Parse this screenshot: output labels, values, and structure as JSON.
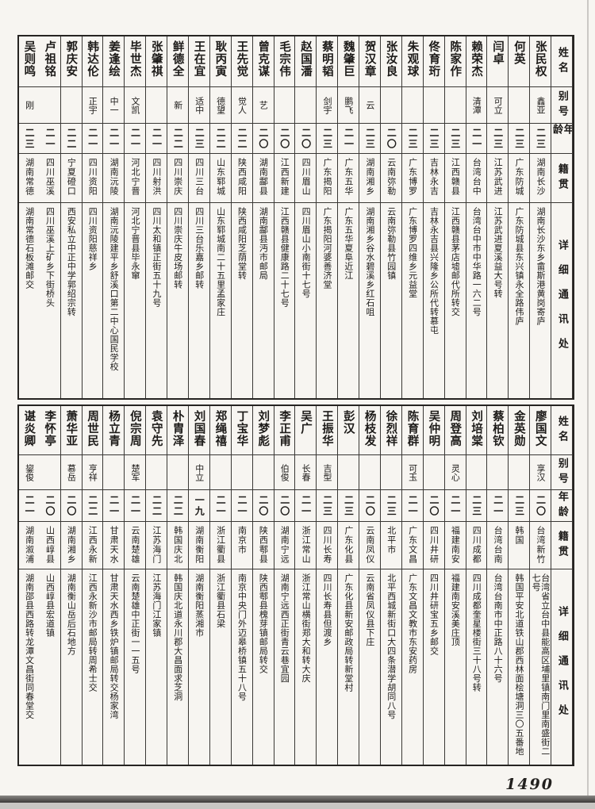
{
  "page": {
    "number": "1490"
  },
  "headers": {
    "name": "姓名",
    "alias": "别号",
    "age": "年龄",
    "native": "籍贯",
    "address": "详细通讯处"
  },
  "tables": [
    {
      "persons": [
        {
          "name": "张民权",
          "alias": "鑫亚",
          "age": "二三",
          "native": "湖南长沙",
          "address": "湖南长沙东乡畲斯港黄岗寄庐"
        },
        {
          "name": "何英",
          "alias": "",
          "age": "二三",
          "native": "广东防城",
          "address": "广东防城县东兴镇永全路伟庐"
        },
        {
          "name": "闫卓",
          "alias": "可立",
          "age": "二三",
          "native": "江苏武进",
          "address": "江苏武进夏溪益大号转"
        },
        {
          "name": "赖荣杰",
          "alias": "清潭",
          "age": "二一",
          "native": "台湾台中",
          "address": "台湾台中市中华路一六二号"
        },
        {
          "name": "陈家作",
          "alias": "",
          "age": "二三",
          "native": "江西赣县",
          "address": "江西赣县茅店墟邮代所转交"
        },
        {
          "name": "佟育珩",
          "alias": "",
          "age": "二三",
          "native": "吉林永吉",
          "address": "吉林永吉县兴隆乡公所代转慕屯"
        },
        {
          "name": "朱观球",
          "alias": "",
          "age": "二三",
          "native": "广东博罗",
          "address": "广东博罗四维乡元益堂"
        },
        {
          "name": "张汝良",
          "alias": "",
          "age": "二〇",
          "native": "云南弥勒",
          "address": "云南弥勒县竹园镇"
        },
        {
          "name": "贺汉章",
          "alias": "云",
          "age": "二三",
          "native": "湖南湘乡",
          "address": "湖南湘乡谷水碧溪乡红石咀"
        },
        {
          "name": "魏肇巨",
          "alias": "鹏飞",
          "age": "二一",
          "native": "广东五华",
          "address": "广东五华夏阜近江"
        },
        {
          "name": "蔡明韬",
          "alias": "剑宇",
          "age": "二三",
          "native": "广东揭阳",
          "address": "广东揭阳河婆善济堂"
        },
        {
          "name": "赵国潘",
          "alias": "",
          "age": "二〇",
          "native": "四川眉山",
          "address": "四川眉山小南街十七号"
        },
        {
          "name": "毛宗伟",
          "alias": "",
          "age": "二〇",
          "native": "江西新建",
          "address": "江西赣县健康路二十七号"
        },
        {
          "name": "曾克谋",
          "alias": "艺",
          "age": "二〇",
          "native": "湖南酃县",
          "address": "湖南酃县沔市邮局"
        },
        {
          "name": "王先觉",
          "alias": "觉人",
          "age": "二二",
          "native": "陕西咸阳",
          "address": "陕西咸阳芝荫堂转"
        },
        {
          "name": "耿丙寅",
          "alias": "德望",
          "age": "二二",
          "native": "山东郓城",
          "address": "山东郓城南二十五里孟家庄"
        },
        {
          "name": "王在宜",
          "alias": "适中",
          "age": "二三",
          "native": "四川三台",
          "address": "四川三台乐嘉乡邮转"
        },
        {
          "name": "鲜德全",
          "alias": "新",
          "age": "二二",
          "native": "四川崇庆",
          "address": "四川崇庆牛皮场邮转"
        },
        {
          "name": "张肇祺",
          "alias": "",
          "age": "二一",
          "native": "四川射洪",
          "address": "四川太和镇正街五十九号"
        },
        {
          "name": "毕世杰",
          "alias": "文凯",
          "age": "二一",
          "native": "河北宁晋",
          "address": "河北宁晋县毕永窜"
        },
        {
          "name": "姜逢绘",
          "alias": "中一",
          "age": "二一",
          "native": "湖南沅陵",
          "address": "湖南沅陵建平乡舒溪口第二中心国民学校"
        },
        {
          "name": "韩达伦",
          "alias": "正宇",
          "age": "二一",
          "native": "四川资阳",
          "address": "四川资阳慈祥乡"
        },
        {
          "name": "郭庆安",
          "alias": "",
          "age": "二二",
          "native": "宁夏磴口",
          "address": "西安私立中正中学郭绍宗转"
        },
        {
          "name": "卢祖铭",
          "alias": "",
          "age": "二一",
          "native": "四川巫溪",
          "address": "四川巫溪上矿乡下街桥头"
        },
        {
          "name": "吴则鸣",
          "alias": "刚",
          "age": "二三",
          "native": "湖南常德",
          "address": "湖南常德石板滩邮交"
        }
      ]
    },
    {
      "persons": [
        {
          "name": "廖国文",
          "alias": "享汉",
          "age": "二〇",
          "native": "台湾新竹",
          "address": "台湾省立台中县能高区埔里镇南门里南盛街二七号"
        },
        {
          "name": "金英勋",
          "alias": "",
          "age": "二三",
          "native": "韩国",
          "address": "韩国平安北道铁山郡西林面桧塘洞三〇五番地"
        },
        {
          "name": "蔡柏钦",
          "alias": "",
          "age": "二一",
          "native": "台湾台南",
          "address": "台湾台南市中正路八十六号"
        },
        {
          "name": "刘培棠",
          "alias": "",
          "age": "二三",
          "native": "四川成都",
          "address": "四川成都奎星楼街三十八号转"
        },
        {
          "name": "周登高",
          "alias": "灵心",
          "age": "二一",
          "native": "福建南安",
          "address": "福建南安溪美庄顶"
        },
        {
          "name": "吴仲明",
          "alias": "",
          "age": "二〇",
          "native": "四川井研",
          "address": "四川井研宝五乡邮交"
        },
        {
          "name": "陈育群",
          "alias": "可玉",
          "age": "二一",
          "native": "广东文昌",
          "address": "广东文昌文教市东安药房"
        },
        {
          "name": "徐烈祥",
          "alias": "",
          "age": "二三",
          "native": "北平市",
          "address": "北平西城新街口大四条潜学胡同八号"
        },
        {
          "name": "杨枝发",
          "alias": "",
          "age": "二〇",
          "native": "云南凤仪",
          "address": "云南省凤仪县下庄"
        },
        {
          "name": "彭汉",
          "alias": "",
          "age": "二三",
          "native": "广东化县",
          "address": "广东化县新安邮政局转新堂村"
        },
        {
          "name": "王振华",
          "alias": "吉型",
          "age": "二三",
          "native": "四川长寿",
          "address": "四川长寿县但渡乡"
        },
        {
          "name": "吴广",
          "alias": "长春",
          "age": "二一",
          "native": "浙江常山",
          "address": "浙江常山横街郑大和转大庆"
        },
        {
          "name": "李正甫",
          "alias": "伯俊",
          "age": "二〇",
          "native": "湖南宁远",
          "address": "湖南宁远西正街青云巷宜园"
        },
        {
          "name": "刘梦彪",
          "alias": "",
          "age": "二〇",
          "native": "陕西鄠县",
          "address": "陕西鄠县槐芽镇邮局转交"
        },
        {
          "name": "丁宝华",
          "alias": "",
          "age": "二一",
          "native": "南京市",
          "address": "南京中央门外迈皋桥镇五十八号"
        },
        {
          "name": "郑绳禧",
          "alias": "",
          "age": "二一",
          "native": "浙江衢县",
          "address": "浙江衢县石梁"
        },
        {
          "name": "刘国春",
          "alias": "中立",
          "age": "一九",
          "native": "湖南衡阳",
          "address": "湖南衡阳蒸湘市"
        },
        {
          "name": "朴胄泽",
          "alias": "",
          "age": "二二",
          "native": "韩国庆北",
          "address": "韩国庆北道永川郡大昌面求芝洞"
        },
        {
          "name": "袁守先",
          "alias": "",
          "age": "二二",
          "native": "江苏海门",
          "address": "江苏海门江家镇"
        },
        {
          "name": "倪宗周",
          "alias": "楚军",
          "age": "二一",
          "native": "云南楚雄",
          "address": "云南楚雄中正街一一五号"
        },
        {
          "name": "杨立青",
          "alias": "",
          "age": "二一",
          "native": "甘肃天水",
          "address": "甘肃天水西乡铁炉镇邮局转交杨家湾"
        },
        {
          "name": "周世民",
          "alias": "亨祥",
          "age": "二二",
          "native": "江西永新",
          "address": "江西永新沙市邮局转周希士交"
        },
        {
          "name": "萧华亚",
          "alias": "慕岳",
          "age": "二〇",
          "native": "湖南湘乡",
          "address": "湖南衡山岳后石地方"
        },
        {
          "name": "李怀亭",
          "alias": "",
          "age": "二〇",
          "native": "山西崞县",
          "address": "山西崞县宏道镇"
        },
        {
          "name": "谌炎卿",
          "alias": "鋆俊",
          "age": "二一",
          "native": "湖南溆浦",
          "address": "湖南邵县西路转龙潭文昌街同春堂交"
        }
      ]
    }
  ]
}
